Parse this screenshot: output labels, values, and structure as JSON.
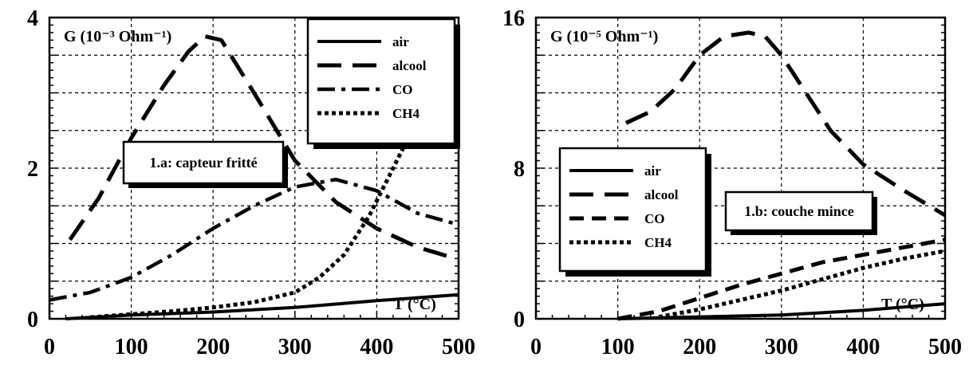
{
  "chart_data": [
    {
      "type": "line",
      "ylabel": "G (10⁻³ Ohm⁻¹)",
      "xlabel": "T (°C)",
      "annotation": "1.a: capteur fritté",
      "xlim": [
        0,
        500
      ],
      "ylim": [
        0,
        4
      ],
      "grid": true,
      "legend_position": "top-right",
      "xticks": [
        "0",
        "100",
        "200",
        "300",
        "400",
        "500"
      ],
      "yticks": [
        "0",
        "2",
        "4"
      ],
      "series": [
        {
          "name": "air",
          "style": "solid",
          "x": [
            20,
            100,
            200,
            300,
            400,
            500
          ],
          "y": [
            0.0,
            0.05,
            0.09,
            0.15,
            0.24,
            0.32
          ]
        },
        {
          "name": "alcool",
          "style": "longdash",
          "x": [
            25,
            60,
            100,
            140,
            170,
            190,
            210,
            250,
            300,
            350,
            400,
            450,
            490
          ],
          "y": [
            1.05,
            1.6,
            2.4,
            3.1,
            3.55,
            3.75,
            3.7,
            3.0,
            2.1,
            1.55,
            1.2,
            0.95,
            0.82
          ]
        },
        {
          "name": "CO",
          "style": "dashdot",
          "x": [
            0,
            50,
            100,
            150,
            200,
            250,
            300,
            350,
            400,
            450,
            500
          ],
          "y": [
            0.25,
            0.35,
            0.55,
            0.85,
            1.2,
            1.5,
            1.75,
            1.85,
            1.7,
            1.4,
            1.25
          ]
        },
        {
          "name": "CH4",
          "style": "dotted",
          "x": [
            50,
            100,
            150,
            200,
            250,
            300,
            330,
            360,
            390,
            420,
            450,
            480
          ],
          "y": [
            0.02,
            0.06,
            0.1,
            0.15,
            0.22,
            0.35,
            0.55,
            0.85,
            1.35,
            2.0,
            2.65,
            3.3
          ]
        }
      ]
    },
    {
      "type": "line",
      "ylabel": "G (10⁻⁵ Ohm⁻¹)",
      "xlabel": "T (°C)",
      "annotation": "1.b: couche mince",
      "xlim": [
        0,
        500
      ],
      "ylim": [
        0,
        16
      ],
      "grid": true,
      "legend_position": "middle-left",
      "xticks": [
        "0",
        "100",
        "200",
        "300",
        "400",
        "500"
      ],
      "yticks": [
        "0",
        "8",
        "16"
      ],
      "series": [
        {
          "name": "air",
          "style": "solid",
          "x": [
            100,
            200,
            300,
            400,
            500
          ],
          "y": [
            0.0,
            0.1,
            0.2,
            0.45,
            0.8
          ]
        },
        {
          "name": "alcool",
          "style": "longdash",
          "x": [
            110,
            140,
            170,
            200,
            230,
            260,
            280,
            300,
            330,
            360,
            400,
            450,
            500
          ],
          "y": [
            10.4,
            11.0,
            12.2,
            14.0,
            15.0,
            15.2,
            15.0,
            14.0,
            12.0,
            10.0,
            8.2,
            6.8,
            5.5
          ]
        },
        {
          "name": "CO",
          "style": "dashed",
          "x": [
            100,
            150,
            200,
            250,
            300,
            350,
            400,
            450,
            500
          ],
          "y": [
            0.0,
            0.4,
            1.1,
            1.8,
            2.4,
            3.0,
            3.4,
            3.8,
            4.2
          ]
        },
        {
          "name": "CH4",
          "style": "dotted",
          "x": [
            150,
            200,
            250,
            300,
            350,
            400,
            450,
            500
          ],
          "y": [
            0.1,
            0.5,
            1.0,
            1.5,
            2.1,
            2.7,
            3.2,
            3.6
          ]
        }
      ]
    }
  ]
}
